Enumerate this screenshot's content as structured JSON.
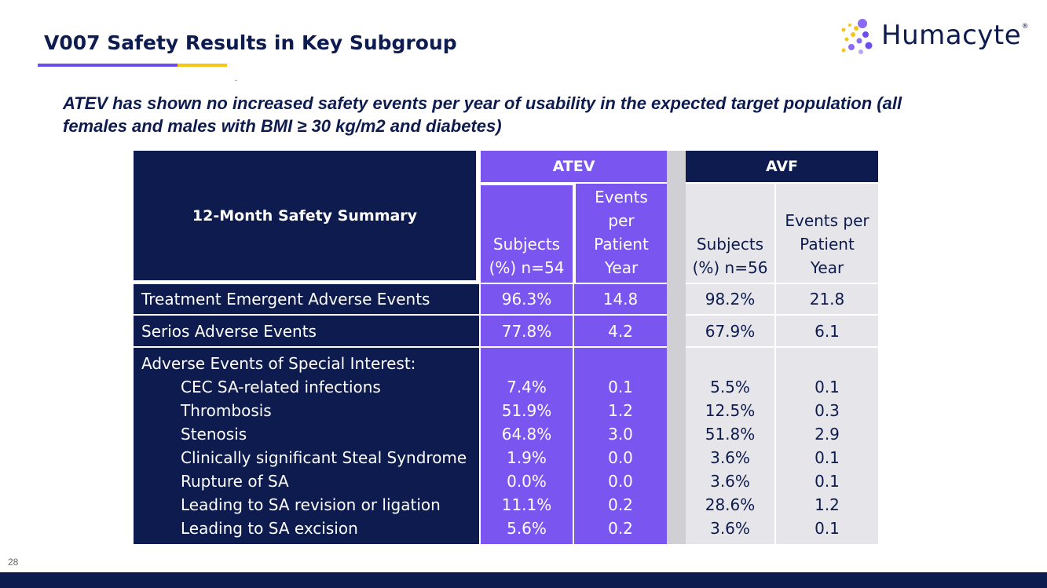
{
  "slide": {
    "title": "V007 Safety Results in Key Subgroup",
    "subtitle": "ATEV has shown no increased safety events per year of usability in the expected target population (all females and males with BMI ≥ 30 kg/m2 and diabetes)",
    "page_number": "28"
  },
  "logo": {
    "text": "Humacyte",
    "registered": "®",
    "icon": "humacyte-dots-logo-icon"
  },
  "colors": {
    "navy": "#0d1b4f",
    "purple": "#7b55f0",
    "grey": "#e6e6ea",
    "accent_yellow": "#f5c518"
  },
  "table": {
    "summary_header": "12-Month Safety Summary",
    "groups": {
      "atev": "ATEV",
      "avf": "AVF"
    },
    "columns": {
      "atev_subjects": [
        "Subjects",
        "(%) n=54"
      ],
      "atev_events": [
        "Events",
        "per",
        "Patient",
        "Year"
      ],
      "avf_subjects": [
        "Subjects",
        "(%) n=56"
      ],
      "avf_events": [
        "Events per",
        "Patient",
        "Year"
      ]
    },
    "rows": [
      {
        "label": "Treatment Emergent Adverse Events",
        "atev_subjects": "96.3%",
        "atev_events": "14.8",
        "avf_subjects": "98.2%",
        "avf_events": "21.8"
      },
      {
        "label": "Serios Adverse Events",
        "atev_subjects": "77.8%",
        "atev_events": "4.2",
        "avf_subjects": "67.9%",
        "avf_events": "6.1"
      }
    ],
    "aesi": {
      "label": "Adverse Events of Special Interest:",
      "items": [
        {
          "label": "CEC SA-related infections",
          "atev_subjects": "7.4%",
          "atev_events": "0.1",
          "avf_subjects": "5.5%",
          "avf_events": "0.1"
        },
        {
          "label": "Thrombosis",
          "atev_subjects": "51.9%",
          "atev_events": "1.2",
          "avf_subjects": "12.5%",
          "avf_events": "0.3"
        },
        {
          "label": "Stenosis",
          "atev_subjects": "64.8%",
          "atev_events": "3.0",
          "avf_subjects": "51.8%",
          "avf_events": "2.9"
        },
        {
          "label": "Clinically significant Steal Syndrome",
          "atev_subjects": "1.9%",
          "atev_events": "0.0",
          "avf_subjects": "3.6%",
          "avf_events": "0.1"
        },
        {
          "label": "Rupture of SA",
          "atev_subjects": "0.0%",
          "atev_events": "0.0",
          "avf_subjects": "3.6%",
          "avf_events": "0.1"
        },
        {
          "label": "Leading to SA revision or ligation",
          "atev_subjects": "11.1%",
          "atev_events": "0.2",
          "avf_subjects": "28.6%",
          "avf_events": "1.2"
        },
        {
          "label": "Leading to SA excision",
          "atev_subjects": "5.6%",
          "atev_events": "0.2",
          "avf_subjects": "3.6%",
          "avf_events": "0.1"
        }
      ]
    }
  }
}
